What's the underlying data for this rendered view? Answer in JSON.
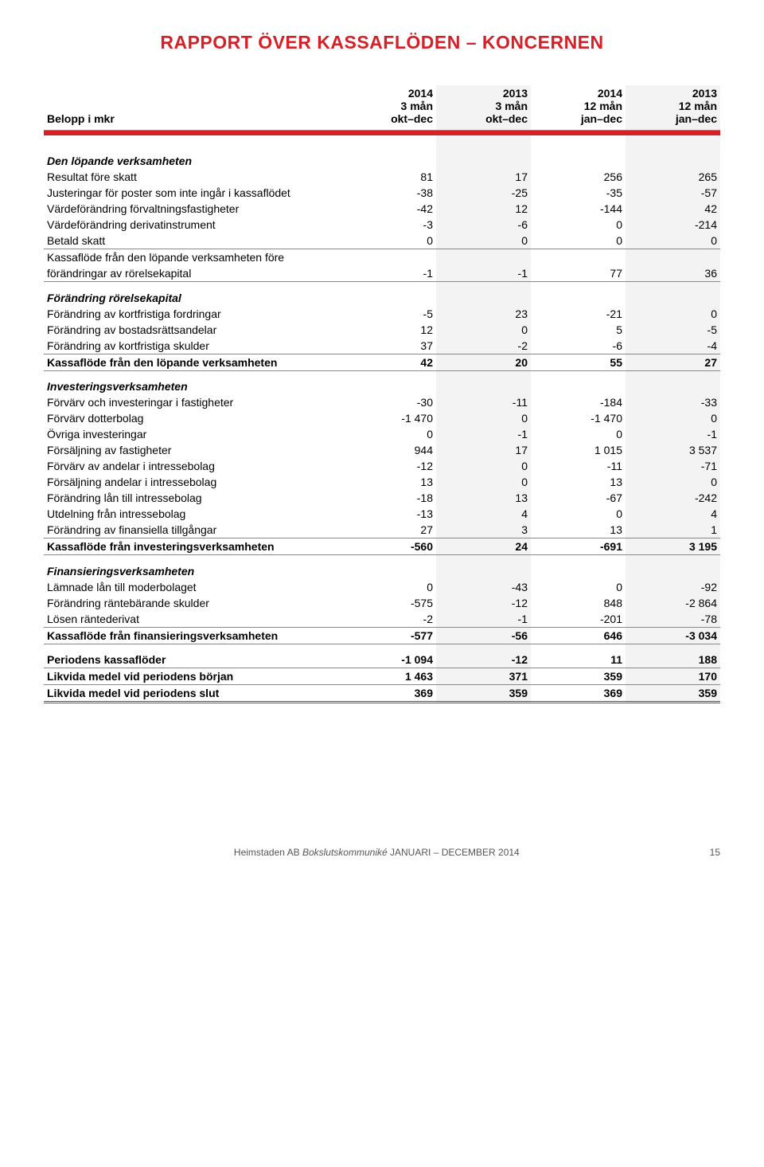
{
  "title": "RAPPORT ÖVER KASSAFLÖDEN – KONCERNEN",
  "header": {
    "row_label": "Belopp i mkr",
    "cols": [
      {
        "year": "2014",
        "period": "3 mån",
        "range": "okt–dec"
      },
      {
        "year": "2013",
        "period": "3 mån",
        "range": "okt–dec"
      },
      {
        "year": "2014",
        "period": "12 mån",
        "range": "jan–dec"
      },
      {
        "year": "2013",
        "period": "12 mån",
        "range": "jan–dec"
      }
    ]
  },
  "s1_title": "Den löpande verksamheten",
  "r_resultat": {
    "label": "Resultat före skatt",
    "v": [
      "81",
      "17",
      "256",
      "265"
    ]
  },
  "r_just": {
    "label": "Justeringar för poster som inte ingår i kassaflödet",
    "v": [
      "-38",
      "-25",
      "-35",
      "-57"
    ]
  },
  "r_vf_forv": {
    "label": "Värdeförändring förvaltningsfastigheter",
    "v": [
      "-42",
      "12",
      "-144",
      "42"
    ]
  },
  "r_vf_deriv": {
    "label": "Värdeförändring derivatinstrument",
    "v": [
      "-3",
      "-6",
      "0",
      "-214"
    ]
  },
  "r_betald": {
    "label": "Betald skatt",
    "v": [
      "0",
      "0",
      "0",
      "0"
    ]
  },
  "r_kf_fore1": {
    "label": "Kassaflöde från den löpande verksamheten före",
    "v": [
      "",
      "",
      "",
      ""
    ]
  },
  "r_kf_fore2": {
    "label": "förändringar av rörelsekapital",
    "v": [
      "-1",
      "-1",
      "77",
      "36"
    ]
  },
  "s2_title": "Förändring rörelsekapital",
  "r_kortfordr": {
    "label": "Förändring av kortfristiga fordringar",
    "v": [
      "-5",
      "23",
      "-21",
      "0"
    ]
  },
  "r_bostad": {
    "label": "Förändring av bostadsrättsandelar",
    "v": [
      "12",
      "0",
      "5",
      "-5"
    ]
  },
  "r_kortskuld": {
    "label": "Förändring av kortfristiga skulder",
    "v": [
      "37",
      "-2",
      "-6",
      "-4"
    ]
  },
  "r_kf_lop": {
    "label": "Kassaflöde från den löpande verksamheten",
    "v": [
      "42",
      "20",
      "55",
      "27"
    ]
  },
  "s3_title": "Investeringsverksamheten",
  "r_forv_inv": {
    "label": "Förvärv och investeringar i fastigheter",
    "v": [
      "-30",
      "-11",
      "-184",
      "-33"
    ]
  },
  "r_forv_dott": {
    "label": "Förvärv dotterbolag",
    "v": [
      "-1 470",
      "0",
      "-1 470",
      "0"
    ]
  },
  "r_ovr_inv": {
    "label": "Övriga investeringar",
    "v": [
      "0",
      "-1",
      "0",
      "-1"
    ]
  },
  "r_fors_fast": {
    "label": "Försäljning av fastigheter",
    "v": [
      "944",
      "17",
      "1 015",
      "3 537"
    ]
  },
  "r_forv_and": {
    "label": "Förvärv av andelar i intressebolag",
    "v": [
      "-12",
      "0",
      "-11",
      "-71"
    ]
  },
  "r_fors_and": {
    "label": "Försäljning andelar i intressebolag",
    "v": [
      "13",
      "0",
      "13",
      "0"
    ]
  },
  "r_for_lan": {
    "label": "Förändring lån till intressebolag",
    "v": [
      "-18",
      "13",
      "-67",
      "-242"
    ]
  },
  "r_utdeln": {
    "label": "Utdelning från intressebolag",
    "v": [
      "-13",
      "4",
      "0",
      "4"
    ]
  },
  "r_fin_till": {
    "label": "Förändring av finansiella tillgångar",
    "v": [
      "27",
      "3",
      "13",
      "1"
    ]
  },
  "r_kf_inv": {
    "label": "Kassaflöde från investeringsverksamheten",
    "v": [
      "-560",
      "24",
      "-691",
      "3 195"
    ]
  },
  "s4_title": "Finansieringsverksamheten",
  "r_lamn_lan": {
    "label": "Lämnade lån till moderbolaget",
    "v": [
      "0",
      "-43",
      "0",
      "-92"
    ]
  },
  "r_for_rante": {
    "label": "Förändring räntebärande skulder",
    "v": [
      "-575",
      "-12",
      "848",
      "-2 864"
    ]
  },
  "r_losen": {
    "label": "Lösen räntederivat",
    "v": [
      "-2",
      "-1",
      "-201",
      "-78"
    ]
  },
  "r_kf_fin": {
    "label": "Kassaflöde från finansieringsverksamheten",
    "v": [
      "-577",
      "-56",
      "646",
      "-3 034"
    ]
  },
  "r_period_kf": {
    "label": "Periodens kassaflöder",
    "v": [
      "-1 094",
      "-12",
      "11",
      "188"
    ]
  },
  "r_likv_start": {
    "label": "Likvida medel vid periodens början",
    "v": [
      "1 463",
      "371",
      "359",
      "170"
    ]
  },
  "r_likv_end": {
    "label": "Likvida medel vid periodens slut",
    "v": [
      "369",
      "359",
      "369",
      "359"
    ]
  },
  "footer": {
    "company": "Heimstaden AB ",
    "doc": "Bokslutskommuniké",
    "period": " JANUARI – DECEMBER 2014",
    "page": "15"
  },
  "colors": {
    "accent": "#d52027",
    "alt_bg": "#f3f3f3",
    "rule": "#888888",
    "text": "#000000"
  }
}
